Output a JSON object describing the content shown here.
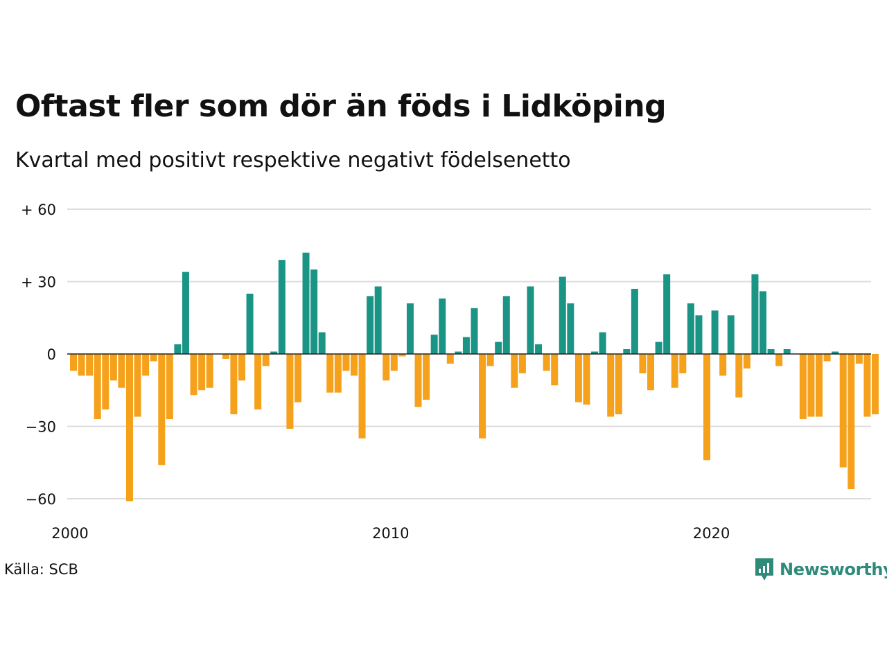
{
  "chart_data": {
    "type": "bar",
    "title": "Oftast fler som dör än föds i Lidköping",
    "subtitle": "Kvartal med positivt respektive negativt födelsenetto",
    "source": "Källa: SCB",
    "brand": "Newsworthy",
    "ylim": [
      -60,
      60
    ],
    "yticks": [
      {
        "value": 60,
        "label": "+ 60"
      },
      {
        "value": 30,
        "label": "+ 30"
      },
      {
        "value": 0,
        "label": "0"
      },
      {
        "value": -30,
        "label": "−30"
      },
      {
        "value": -60,
        "label": "−60"
      }
    ],
    "xticks": [
      {
        "year": 2000,
        "label": "2000"
      },
      {
        "year": 2010,
        "label": "2010"
      },
      {
        "year": 2020,
        "label": "2020"
      }
    ],
    "start_year": 2000,
    "start_quarter": 1,
    "values": [
      -7,
      -9,
      -9,
      -27,
      -23,
      -11,
      -14,
      -61,
      -26,
      -9,
      -3,
      -46,
      -27,
      4,
      34,
      -17,
      -15,
      -14,
      0,
      -2,
      -25,
      -11,
      25,
      -23,
      -5,
      1,
      39,
      -31,
      -20,
      42,
      35,
      9,
      -16,
      -16,
      -7,
      -9,
      -35,
      24,
      28,
      -11,
      -7,
      -1,
      21,
      -22,
      -19,
      8,
      23,
      -4,
      1,
      7,
      19,
      -35,
      -5,
      5,
      24,
      -14,
      -8,
      28,
      4,
      -7,
      -13,
      32,
      21,
      -20,
      -21,
      1,
      9,
      -26,
      -25,
      2,
      27,
      -8,
      -15,
      5,
      33,
      -14,
      -8,
      21,
      16,
      -44,
      18,
      -9,
      16,
      -18,
      -6,
      33,
      26,
      2,
      -5,
      2,
      0,
      -27,
      -26,
      -26,
      -3,
      1,
      -47,
      -56,
      -4,
      -26,
      -25
    ],
    "colors": {
      "positive": "#1a9485",
      "negative": "#f5a11c",
      "grid": "#dddddd",
      "zero_line": "#222222"
    },
    "grid": true
  }
}
